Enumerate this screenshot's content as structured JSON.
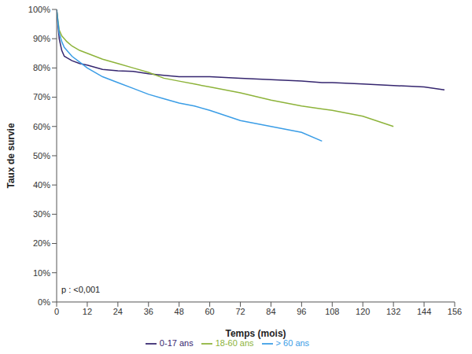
{
  "chart_data": {
    "type": "line",
    "x_label": "Temps (mois)",
    "y_label": "Taux de survie",
    "annotation": "p : <0,001",
    "x": [
      0,
      1,
      2,
      3,
      4,
      6,
      9,
      12,
      18,
      24,
      30,
      36,
      42,
      48,
      54,
      60,
      72,
      84,
      96,
      104,
      108,
      120,
      132,
      144,
      152
    ],
    "series": [
      {
        "name": "0-17 ans",
        "color": "#35266f",
        "values": [
          100,
          90,
          86,
          84,
          83.5,
          82.5,
          81.5,
          81,
          79.5,
          79,
          78.8,
          78,
          77.5,
          77,
          77,
          77,
          76.5,
          76,
          75.5,
          75,
          75,
          74.5,
          74,
          73.5,
          72.5
        ]
      },
      {
        "name": "18-60 ans",
        "color": "#8db33a",
        "values": [
          100,
          93,
          91,
          90,
          89,
          87.5,
          86,
          85,
          83,
          81.5,
          80,
          78.5,
          76.5,
          75.5,
          74.5,
          73.5,
          71.5,
          69,
          67,
          66,
          65.5,
          63.5,
          60,
          null,
          null
        ]
      },
      {
        "name": "> 60 ans",
        "color": "#3a9de6",
        "values": [
          100,
          92,
          89,
          87,
          86,
          84,
          82,
          80,
          77,
          75,
          73,
          71,
          69.5,
          68,
          67,
          65.5,
          62,
          60,
          58,
          55,
          null,
          null,
          null,
          null,
          null
        ]
      }
    ],
    "xlim": [
      0,
      156
    ],
    "xticks": [
      0,
      12,
      24,
      36,
      48,
      60,
      72,
      84,
      96,
      108,
      120,
      132,
      144,
      156
    ],
    "ylim": [
      0,
      100
    ],
    "yticks": [
      {
        "value": 0,
        "label": "0%"
      },
      {
        "value": 10,
        "label": "10%"
      },
      {
        "value": 20,
        "label": "20%"
      },
      {
        "value": 30,
        "label": "30%"
      },
      {
        "value": 40,
        "label": "40%"
      },
      {
        "value": 50,
        "label": "50%"
      },
      {
        "value": 60,
        "label": "60%"
      },
      {
        "value": 70,
        "label": "70%"
      },
      {
        "value": 80,
        "label": "80%"
      },
      {
        "value": 90,
        "label": "90%"
      },
      {
        "value": 100,
        "label": "100%"
      }
    ],
    "grid": false,
    "legend": "bottom"
  }
}
